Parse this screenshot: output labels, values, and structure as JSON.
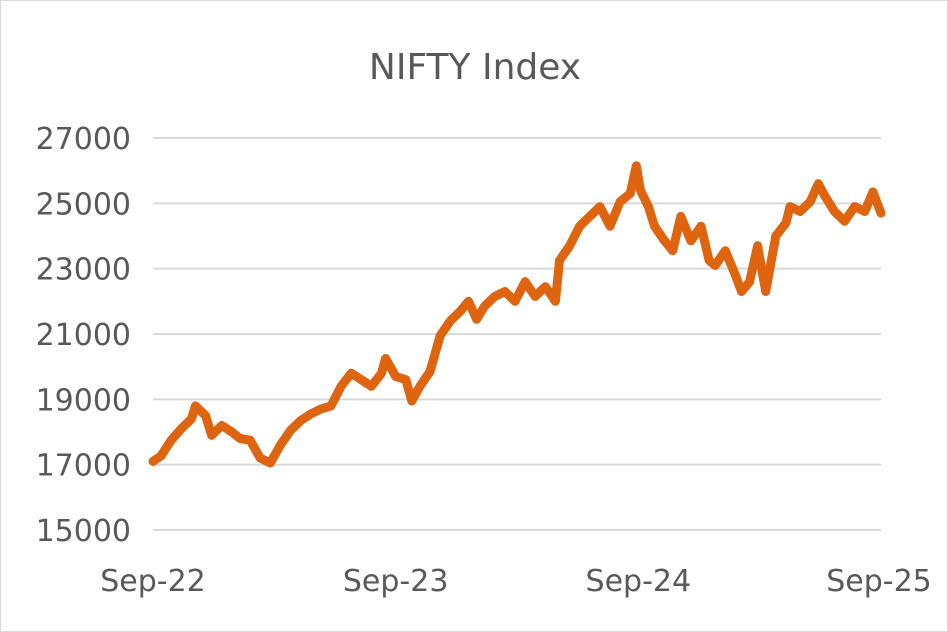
{
  "chart_data": {
    "type": "line",
    "title": "NIFTY Index",
    "xlabel": "",
    "ylabel": "",
    "x_unit": "months since Sep-22",
    "ylim": [
      15000,
      27000
    ],
    "yticks": [
      15000,
      17000,
      19000,
      21000,
      23000,
      25000,
      27000
    ],
    "ytick_labels": [
      "15000",
      "17000",
      "19000",
      "21000",
      "23000",
      "25000",
      "27000"
    ],
    "xlim": [
      0,
      36
    ],
    "xticks": [
      0,
      12,
      24,
      36
    ],
    "xtick_labels": [
      "Sep-22",
      "Sep-23",
      "Sep-24",
      "Sep-25"
    ],
    "grid": "horizontal",
    "legend": "none",
    "series": [
      {
        "name": "NIFTY Index",
        "color": "#DE6410",
        "points": [
          [
            0,
            17100
          ],
          [
            0.4,
            17270
          ],
          [
            0.9,
            17750
          ],
          [
            1.4,
            18100
          ],
          [
            1.9,
            18400
          ],
          [
            2.1,
            18800
          ],
          [
            2.6,
            18500
          ],
          [
            2.9,
            17900
          ],
          [
            3.4,
            18200
          ],
          [
            3.9,
            18000
          ],
          [
            4.3,
            17800
          ],
          [
            4.8,
            17750
          ],
          [
            5.3,
            17200
          ],
          [
            5.8,
            17050
          ],
          [
            6.3,
            17600
          ],
          [
            6.8,
            18050
          ],
          [
            7.3,
            18350
          ],
          [
            7.8,
            18550
          ],
          [
            8.3,
            18700
          ],
          [
            8.8,
            18800
          ],
          [
            9.3,
            19400
          ],
          [
            9.8,
            19800
          ],
          [
            10.3,
            19600
          ],
          [
            10.8,
            19400
          ],
          [
            11.3,
            19800
          ],
          [
            11.5,
            20250
          ],
          [
            12.0,
            19700
          ],
          [
            12.5,
            19600
          ],
          [
            12.8,
            18950
          ],
          [
            13.2,
            19400
          ],
          [
            13.7,
            19850
          ],
          [
            14.2,
            20950
          ],
          [
            14.7,
            21400
          ],
          [
            15.2,
            21700
          ],
          [
            15.6,
            22000
          ],
          [
            16.0,
            21450
          ],
          [
            16.4,
            21850
          ],
          [
            16.9,
            22150
          ],
          [
            17.4,
            22300
          ],
          [
            17.9,
            22000
          ],
          [
            18.4,
            22600
          ],
          [
            18.9,
            22150
          ],
          [
            19.4,
            22450
          ],
          [
            19.9,
            22000
          ],
          [
            20.1,
            23250
          ],
          [
            20.6,
            23700
          ],
          [
            21.1,
            24300
          ],
          [
            21.6,
            24600
          ],
          [
            22.1,
            24900
          ],
          [
            22.6,
            24300
          ],
          [
            23.1,
            25050
          ],
          [
            23.6,
            25300
          ],
          [
            23.9,
            26150
          ],
          [
            24.1,
            25400
          ],
          [
            24.5,
            24900
          ],
          [
            24.8,
            24300
          ],
          [
            25.3,
            23850
          ],
          [
            25.7,
            23550
          ],
          [
            26.1,
            24600
          ],
          [
            26.6,
            23850
          ],
          [
            27.1,
            24300
          ],
          [
            27.5,
            23250
          ],
          [
            27.8,
            23100
          ],
          [
            28.3,
            23550
          ],
          [
            28.8,
            22800
          ],
          [
            29.1,
            22300
          ],
          [
            29.5,
            22600
          ],
          [
            29.9,
            23700
          ],
          [
            30.3,
            22300
          ],
          [
            30.8,
            24000
          ],
          [
            31.3,
            24400
          ],
          [
            31.5,
            24900
          ],
          [
            32.0,
            24750
          ],
          [
            32.5,
            25050
          ],
          [
            32.9,
            25600
          ],
          [
            33.2,
            25250
          ],
          [
            33.7,
            24750
          ],
          [
            34.2,
            24450
          ],
          [
            34.7,
            24900
          ],
          [
            35.2,
            24750
          ],
          [
            35.6,
            25350
          ],
          [
            36.0,
            24700
          ]
        ]
      }
    ]
  }
}
